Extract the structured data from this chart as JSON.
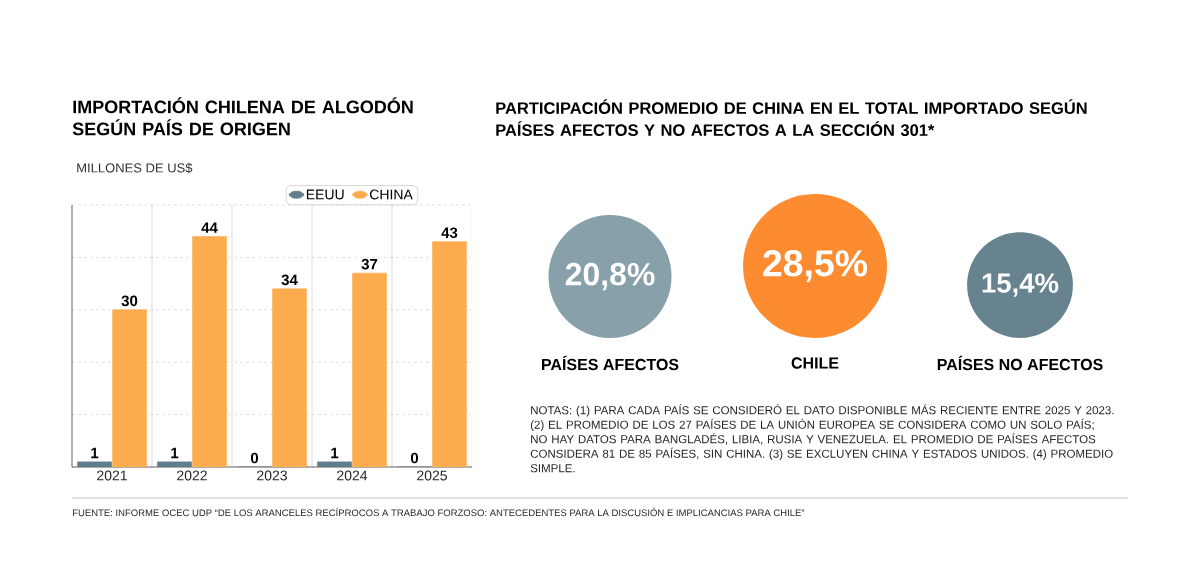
{
  "chart_data": [
    {
      "type": "bar",
      "title": "IMPORTACIÓN CHILENA DE ALGODÓN SEGÚN PAÍS DE ORIGEN",
      "ylabel": "MILLONES DE US$",
      "categories": [
        "2021",
        "2022",
        "2023",
        "2024",
        "2025"
      ],
      "series": [
        {
          "name": "EEUU",
          "color": "#5f7d8c",
          "values": [
            1,
            1,
            0,
            1,
            0
          ]
        },
        {
          "name": "CHINA",
          "color": "#fdab4f",
          "values": [
            30,
            44,
            34,
            37,
            43
          ]
        }
      ],
      "ylim": [
        0,
        50
      ],
      "yticks": [
        {
          "value": 0,
          "label": null
        },
        {
          "value": 10,
          "label": null
        },
        {
          "value": 20,
          "label": null
        },
        {
          "value": 30,
          "label": null
        },
        {
          "value": 40,
          "label": null
        },
        {
          "value": 50,
          "label": null
        }
      ],
      "tick_labels": "x",
      "grid": true,
      "legend": "top",
      "data_labels": true,
      "annotations": [
        "FUENTE: INFORME OCEC UDP “DE LOS ARANCELES RECÍPROCOS A TRABAJO FORZOSO: ANTECEDENTES PARA LA DISCUSIÓN E IMPLICANCIAS PARA CHILE”"
      ]
    },
    {
      "type": "other",
      "title": "PARTICIPACIÓN PROMEDIO DE CHINA EN EL TOTAL IMPORTADO SEGÚN PAÍSES AFECTOS Y NO AFECTOS A LA SECCIÓN 301*",
      "categories": [
        "PAÍSES AFECTOS",
        "CHILE",
        "PAÍSES NO AFECTOS"
      ],
      "values": [
        20.8,
        28.5,
        15.4
      ],
      "value_labels": [
        "20,8%",
        "28,5%",
        "15,4%"
      ],
      "colors": [
        "#87a0aa",
        "#fd8c30",
        "#66838f"
      ],
      "annotations": [
        "NOTAS: (1) PARA CADA PAÍS SE CONSIDERÓ EL DATO DISPONIBLE MÁS RECIENTE ENTRE 2025 Y 2023. (2) EL PROMEDIO DE LOS 27 PAÍSES DE LA UNIÓN EUROPEA SE CONSIDERA COMO UN SOLO PAÍS; NO HAY DATOS PARA BANGLADÉS, LIBIA, RUSIA Y VENEZUELA. EL PROMEDIO DE PAÍSES AFECTOS CONSIDERA 81 DE 85 PAÍSES, SIN CHINA. (3) SE EXCLUYEN CHINA Y ESTADOS UNIDOS. (4) PROMEDIO SIMPLE."
      ]
    }
  ]
}
